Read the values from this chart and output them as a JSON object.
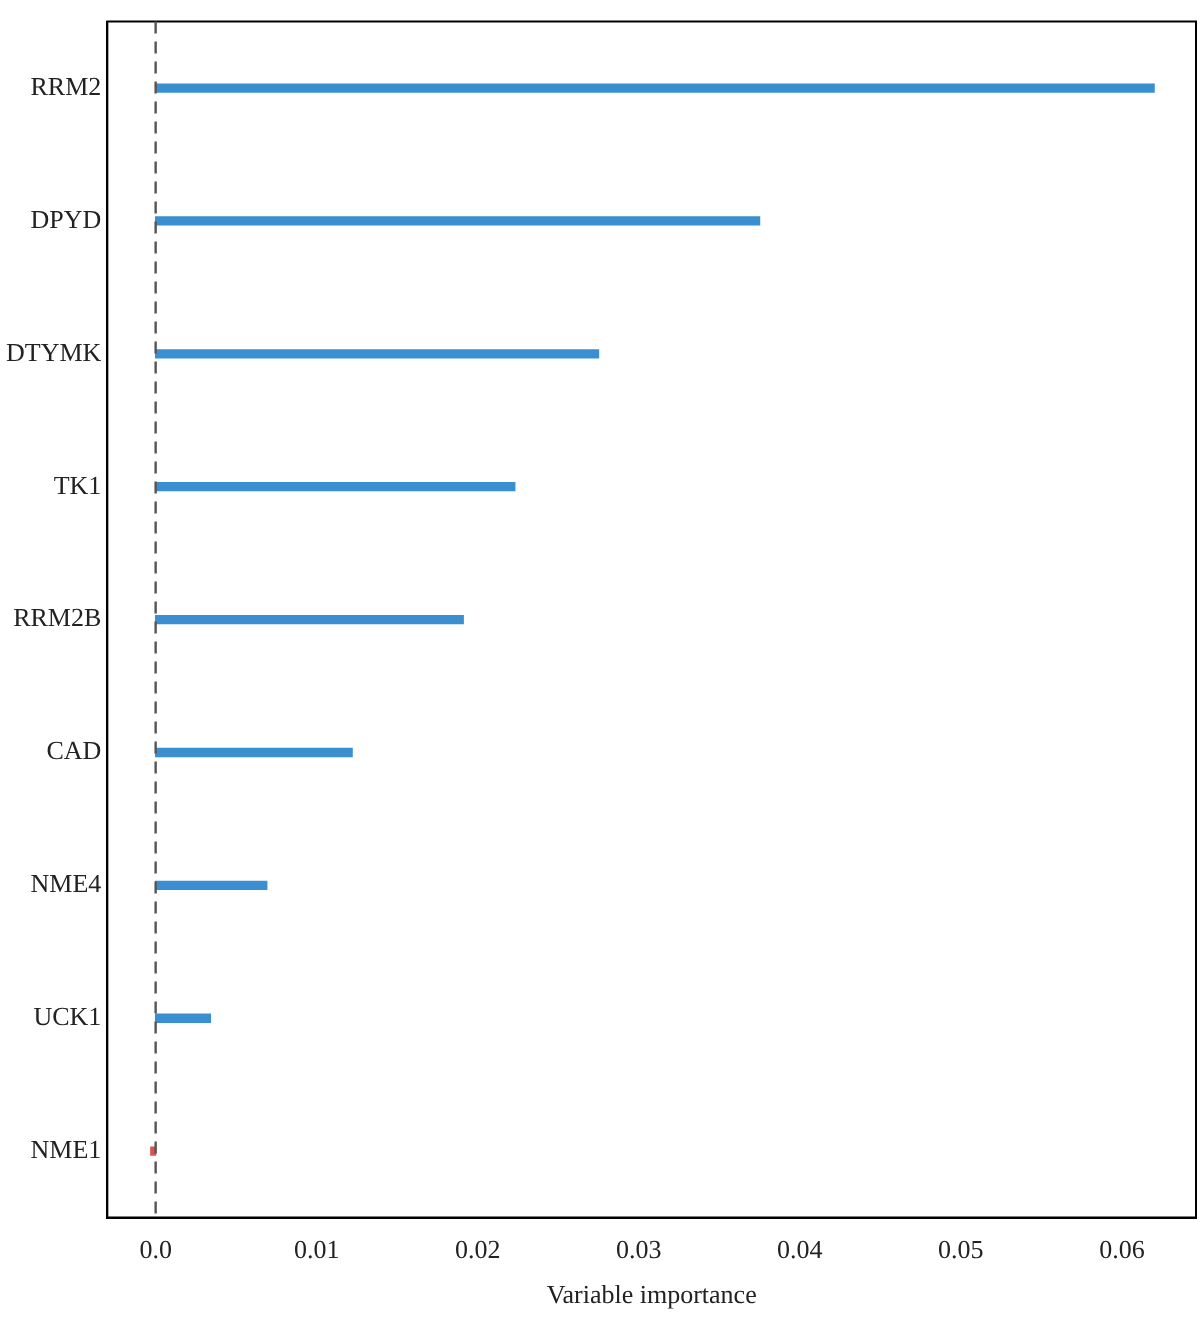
{
  "chart_data": {
    "type": "bar",
    "orientation": "horizontal",
    "xlabel": "Variable importance",
    "categories": [
      "RRM2",
      "DPYD",
      "DTYMK",
      "TK1",
      "RRM2B",
      "CAD",
      "NME4",
      "UCK1",
      "NME1"
    ],
    "values": [
      0.062,
      0.0375,
      0.0275,
      0.0223,
      0.0191,
      0.0122,
      0.0069,
      0.0034,
      -0.0003
    ],
    "colors": [
      "#3a8fd0",
      "#3a8fd0",
      "#3a8fd0",
      "#3a8fd0",
      "#3a8fd0",
      "#3a8fd0",
      "#3a8fd0",
      "#3a8fd0",
      "#d9534f"
    ],
    "xlim": [
      -0.003,
      0.0646
    ],
    "xticks": [
      {
        "value": 0,
        "label": "0.0"
      },
      0.01,
      0.02,
      0.03,
      0.04,
      0.05,
      0.06
    ],
    "ref_lines": [
      {
        "axis": "x",
        "value": 0,
        "color": "#555555",
        "line_style": "dashed"
      }
    ],
    "grid": false,
    "legend": false
  }
}
